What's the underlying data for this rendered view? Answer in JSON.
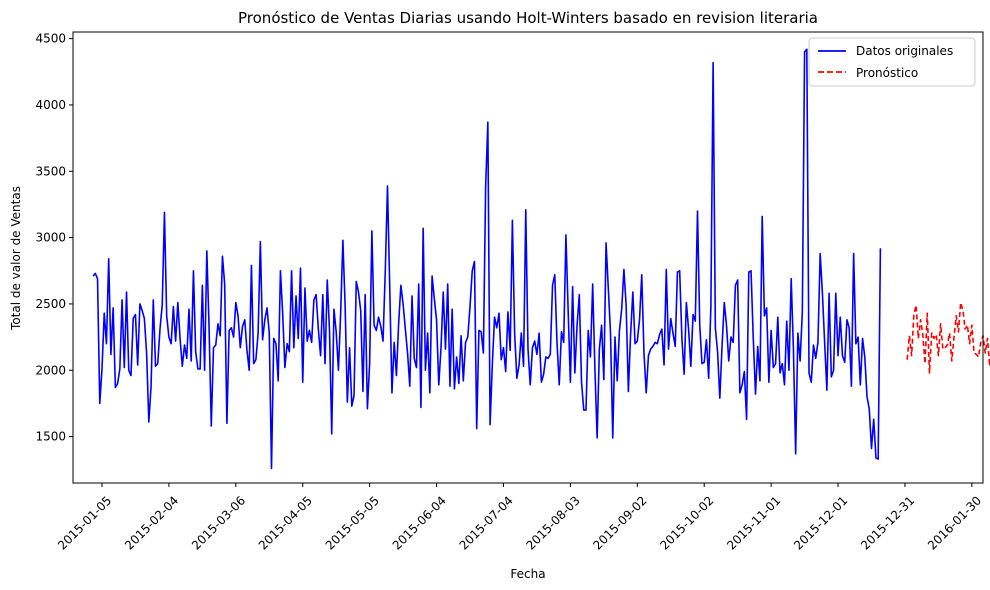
{
  "chart_data": {
    "type": "line",
    "title": "Pronóstico de Ventas Diarias usando Holt-Winters basado en revision literaria",
    "xlabel": "Fecha",
    "ylabel": "Total de valor de Ventas",
    "xlim": [
      "2014-12-23",
      "2016-02-04"
    ],
    "ylim": [
      1150,
      4550
    ],
    "x_ticks": [
      "2015-01-05",
      "2015-02-04",
      "2015-03-06",
      "2015-04-05",
      "2015-05-05",
      "2015-06-04",
      "2015-07-04",
      "2015-08-03",
      "2015-09-02",
      "2015-10-02",
      "2015-11-01",
      "2015-12-01",
      "2015-12-31",
      "2016-01-30"
    ],
    "y_ticks": [
      1500,
      2000,
      2500,
      3000,
      3500,
      4000,
      4500
    ],
    "grid": false,
    "legend_position": "top-right",
    "series": [
      {
        "name": "Datos originales",
        "color": "#0000ff",
        "style": "solid",
        "start_date": "2015-01-01",
        "values": [
          2710,
          2730,
          2690,
          1750,
          2010,
          2430,
          2200,
          2840,
          2120,
          2470,
          1870,
          1900,
          2010,
          2530,
          2020,
          2590,
          2000,
          1960,
          2390,
          2420,
          2040,
          2500,
          2450,
          2390,
          2130,
          1610,
          1880,
          2530,
          2030,
          2050,
          2310,
          2490,
          3190,
          2410,
          2250,
          2200,
          2480,
          2220,
          2510,
          2240,
          2030,
          2190,
          2090,
          2460,
          2070,
          2750,
          2140,
          2010,
          2010,
          2640,
          2000,
          2900,
          2330,
          1580,
          2170,
          2190,
          2350,
          2260,
          2860,
          2650,
          1600,
          2300,
          2320,
          2250,
          2510,
          2410,
          2170,
          2330,
          2380,
          2150,
          2000,
          2790,
          2050,
          2080,
          2280,
          2970,
          2230,
          2380,
          2470,
          2280,
          1260,
          2240,
          2200,
          1920,
          2750,
          2430,
          2020,
          2200,
          2140,
          2750,
          2170,
          2560,
          2240,
          2770,
          1910,
          2620,
          2220,
          2300,
          2210,
          2530,
          2570,
          2310,
          2110,
          2570,
          2050,
          2680,
          2300,
          1520,
          2460,
          2290,
          2000,
          2430,
          2980,
          2490,
          1760,
          2170,
          1730,
          1810,
          2670,
          2590,
          2450,
          1840,
          2570,
          1710,
          2050,
          3050,
          2340,
          2300,
          2400,
          2330,
          2220,
          2740,
          3390,
          2630,
          1830,
          2210,
          1960,
          2350,
          2640,
          2500,
          2310,
          2130,
          1880,
          2560,
          2090,
          2020,
          2650,
          1720,
          3070,
          2000,
          2280,
          1830,
          2710,
          2540,
          2380,
          1890,
          2170,
          2590,
          2160,
          2650,
          1880,
          2460,
          1860,
          2100,
          1900,
          2260,
          1920,
          2210,
          2250,
          2480,
          2750,
          2820,
          1560,
          2300,
          2290,
          2130,
          3380,
          3870,
          1590,
          2040,
          2400,
          2320,
          2430,
          2080,
          2170,
          1990,
          2440,
          2150,
          3130,
          2280,
          1940,
          2040,
          2280,
          2030,
          3210,
          2160,
          1890,
          2170,
          2220,
          2120,
          2280,
          1910,
          1970,
          2100,
          2090,
          2120,
          2640,
          2720,
          2210,
          1890,
          2290,
          2210,
          3020,
          2450,
          1910,
          2630,
          1980,
          2340,
          2570,
          1910,
          1700,
          1700,
          2300,
          2100,
          2650,
          2010,
          1490,
          2160,
          2340,
          1930,
          2960,
          2620,
          2280,
          1490,
          2250,
          1920,
          2300,
          2460,
          2760,
          2490,
          1840,
          2270,
          2590,
          2200,
          2220,
          2380,
          2720,
          2130,
          1830,
          2110,
          2160,
          2180,
          2210,
          2200,
          2270,
          2310,
          2040,
          2760,
          2160,
          2390,
          2280,
          2180,
          2740,
          2750,
          2240,
          1970,
          2510,
          2310,
          2030,
          2420,
          2370,
          3200,
          2340,
          2050,
          2060,
          2230,
          1940,
          2480,
          4320,
          2320,
          2140,
          1790,
          2180,
          2510,
          2340,
          2070,
          2250,
          2210,
          2640,
          2680,
          1830,
          1890,
          1990,
          1630,
          2740,
          2750,
          2240,
          1820,
          2180,
          1920,
          3160,
          2410,
          2470,
          1910,
          2300,
          2020,
          2050,
          2400,
          1980,
          2050,
          1890,
          2370,
          2000,
          2690,
          2160,
          1370,
          2280,
          2070,
          2440,
          4400,
          4420,
          1980,
          1910,
          2190,
          2090,
          2210,
          2880,
          2580,
          2210,
          1850,
          2580,
          1950,
          2000,
          2580,
          2110,
          2400,
          2110,
          2060,
          2380,
          2320,
          1880,
          2880,
          2200,
          2250,
          1890,
          2240,
          2100,
          1800,
          1710,
          1410,
          1630,
          1340,
          1330,
          2920
        ]
      },
      {
        "name": "Pronóstico",
        "color": "#ff0000",
        "style": "dashed",
        "start_date": "2016-01-01",
        "values": [
          2080,
          2260,
          2110,
          2420,
          2490,
          2240,
          2380,
          2270,
          2050,
          2430,
          1980,
          2280,
          2240,
          2270,
          2110,
          2350,
          2160,
          2170,
          2190,
          2280,
          2070,
          2250,
          2410,
          2290,
          2510,
          2450,
          2310,
          2340,
          2200,
          2340,
          2130,
          2120,
          2100,
          2210,
          2260,
          2130,
          2240,
          2030,
          2170,
          2220,
          2210,
          2050,
          2110,
          2170,
          2180,
          2070,
          2120,
          2180,
          2090,
          2010,
          2230,
          2040,
          2100,
          2040,
          1930,
          2090,
          2060,
          2210,
          2180,
          2130,
          2070,
          2140,
          2190,
          2080
        ]
      }
    ]
  }
}
